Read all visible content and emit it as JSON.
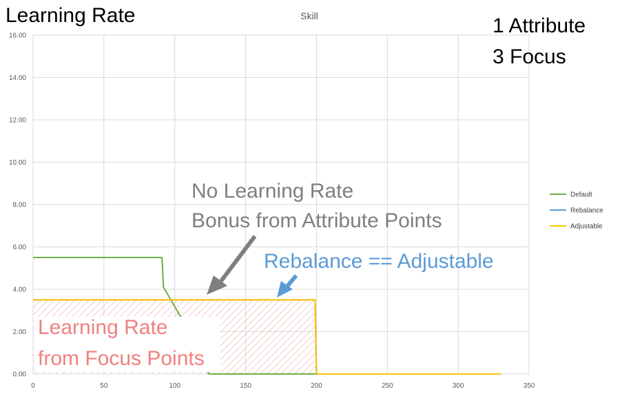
{
  "page_title": "Learning Rate",
  "corner_text": {
    "line1": "1 Attribute",
    "line2": "3 Focus"
  },
  "annotations": {
    "no_bonus_line1": "No Learning Rate",
    "no_bonus_line2": "Bonus from Attribute Points",
    "rebalance_eq": "Rebalance == Adjustable",
    "focus_line1": "Learning Rate",
    "focus_line2": "from Focus Points"
  },
  "colors": {
    "default": "#70AD47",
    "rebalance": "#5B9BD5",
    "adjustable": "#FFC000",
    "gray_annotation": "#7F7F7F",
    "blue_annotation": "#5B9BD5",
    "focus_annotation": "#F08080",
    "hatch": "#F4A6A6",
    "grid": "#D9D9D9"
  },
  "chart_data": {
    "type": "line",
    "title": "Skill",
    "xlabel": "",
    "ylabel": "",
    "xlim": [
      0,
      350
    ],
    "ylim": [
      0,
      16
    ],
    "x_ticks": [
      0,
      50,
      100,
      150,
      200,
      250,
      300,
      350
    ],
    "y_ticks": [
      "0.00",
      "2.00",
      "4.00",
      "6.00",
      "8.00",
      "10.00",
      "12.00",
      "14.00",
      "16.00"
    ],
    "grid": true,
    "legend_position": "right",
    "series": [
      {
        "name": "Default",
        "color": "#70AD47",
        "points": [
          [
            0,
            5.5
          ],
          [
            91,
            5.5
          ],
          [
            92,
            4.1
          ],
          [
            105,
            2.6
          ],
          [
            117,
            1.1
          ],
          [
            124,
            0
          ],
          [
            200,
            0
          ]
        ]
      },
      {
        "name": "Rebalance",
        "color": "#5B9BD5",
        "points": [
          [
            0,
            3.5
          ],
          [
            199,
            3.5
          ],
          [
            200,
            0
          ],
          [
            330,
            0
          ]
        ]
      },
      {
        "name": "Adjustable",
        "color": "#FFC000",
        "points": [
          [
            0,
            3.5
          ],
          [
            199,
            3.5
          ],
          [
            200,
            0
          ],
          [
            330,
            0
          ]
        ]
      }
    ],
    "shaded_region": {
      "x": [
        0,
        200
      ],
      "y": [
        0,
        3.5
      ]
    }
  }
}
